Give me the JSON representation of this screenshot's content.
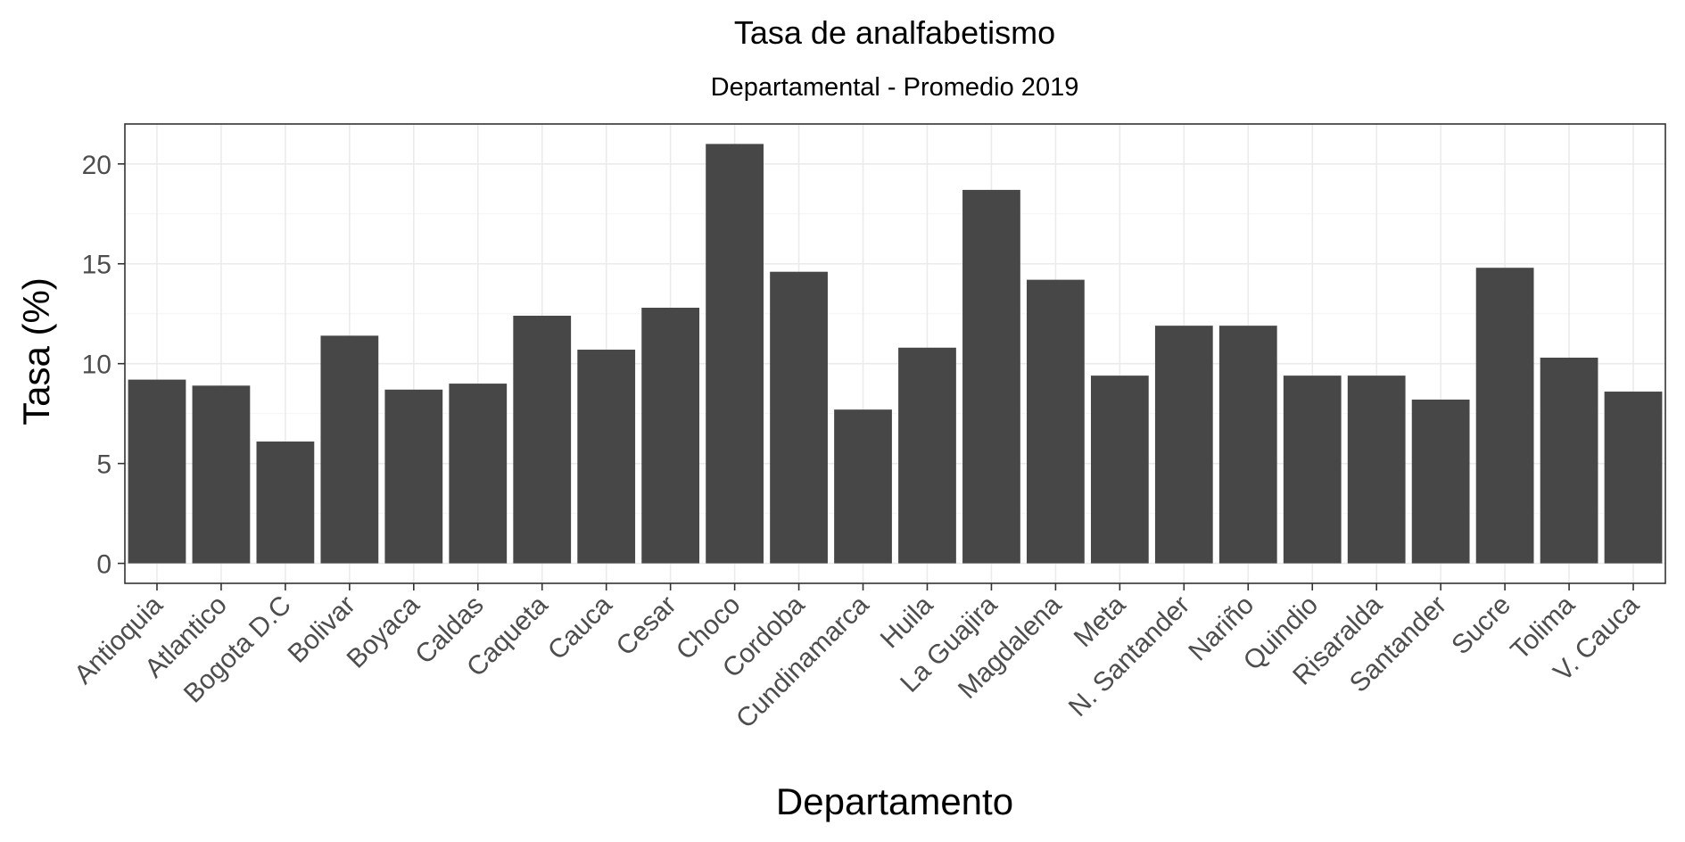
{
  "chart_data": {
    "type": "bar",
    "title": "Tasa de analfabetismo",
    "subtitle": "Departamental - Promedio 2019",
    "xlabel": "Departamento",
    "ylabel": "Tasa (%)",
    "ylim": [
      -1,
      22
    ],
    "yticks": [
      0,
      5,
      10,
      15,
      20
    ],
    "grid": true,
    "bar_color": "#474747",
    "categories": [
      "Antioquia",
      "Atlantico",
      "Bogota D.C",
      "Bolivar",
      "Boyaca",
      "Caldas",
      "Caqueta",
      "Cauca",
      "Cesar",
      "Choco",
      "Cordoba",
      "Cundinamarca",
      "Huila",
      "La Guajira",
      "Magdalena",
      "Meta",
      "N. Santander",
      "Nariño",
      "Quindio",
      "Risaralda",
      "Santander",
      "Sucre",
      "Tolima",
      "V. Cauca"
    ],
    "values": [
      9.2,
      8.9,
      6.1,
      11.4,
      8.7,
      9.0,
      12.4,
      10.7,
      12.8,
      21.0,
      14.6,
      7.7,
      10.8,
      18.7,
      14.2,
      9.4,
      11.9,
      11.9,
      9.4,
      9.4,
      8.2,
      14.8,
      10.3,
      8.6
    ]
  }
}
